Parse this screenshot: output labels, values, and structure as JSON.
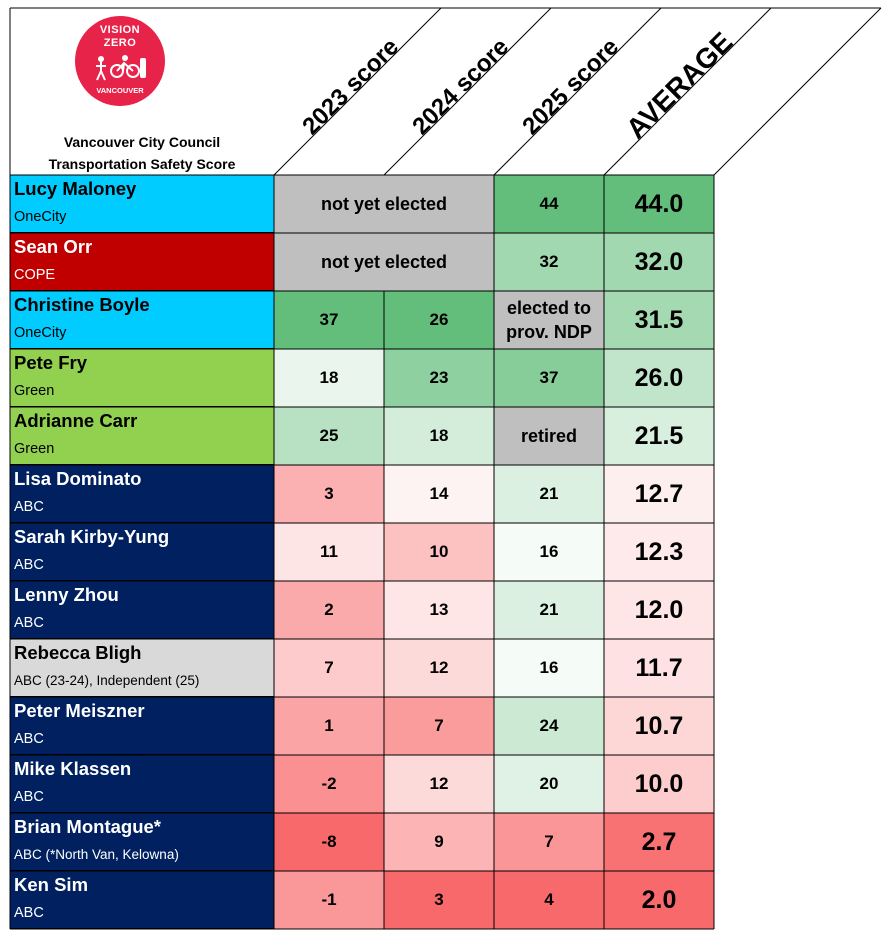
{
  "header": {
    "logo": {
      "line1": "VISION",
      "line2": "ZERO",
      "line3": "VANCOUVER"
    },
    "title_line1": "Vancouver City Council",
    "title_line2": "Transportation Safety Score"
  },
  "colors": {
    "onecity": "#00ccff",
    "cope": "#c00000",
    "green": "#92d050",
    "abc": "#002060",
    "independent": "#d9d9d9",
    "not_applicable": "#bfbfbf",
    "scale_low": "#f8696b",
    "scale_mid": "#ffffff",
    "scale_high": "#63be7b"
  },
  "chart_data": {
    "type": "table",
    "columns": [
      "2023 score",
      "2024 score",
      "2025 score",
      "AVERAGE"
    ],
    "rows": [
      {
        "name": "Lucy Maloney",
        "party": "OneCity",
        "party_key": "onecity",
        "span_note": "not yet elected",
        "s2023": null,
        "s2024": null,
        "s2025": 44,
        "avg": "44.0"
      },
      {
        "name": "Sean Orr",
        "party": "COPE",
        "party_key": "cope",
        "span_note": "not yet elected",
        "s2023": null,
        "s2024": null,
        "s2025": 32,
        "avg": "32.0"
      },
      {
        "name": "Christine Boyle",
        "party": "OneCity",
        "party_key": "onecity",
        "s2023": 37,
        "s2024": 26,
        "s2025": null,
        "s2025_note": "elected to prov. NDP",
        "avg": "31.5"
      },
      {
        "name": "Pete Fry",
        "party": "Green",
        "party_key": "green",
        "s2023": 18,
        "s2024": 23,
        "s2025": 37,
        "avg": "26.0"
      },
      {
        "name": "Adrianne Carr",
        "party": "Green",
        "party_key": "green",
        "s2023": 25,
        "s2024": 18,
        "s2025": null,
        "s2025_note": "retired",
        "avg": "21.5"
      },
      {
        "name": "Lisa Dominato",
        "party": "ABC",
        "party_key": "abc",
        "s2023": 3,
        "s2024": 14,
        "s2025": 21,
        "avg": "12.7"
      },
      {
        "name": "Sarah Kirby-Yung",
        "party": "ABC",
        "party_key": "abc",
        "s2023": 11,
        "s2024": 10,
        "s2025": 16,
        "avg": "12.3"
      },
      {
        "name": "Lenny Zhou",
        "party": "ABC",
        "party_key": "abc",
        "s2023": 2,
        "s2024": 13,
        "s2025": 21,
        "avg": "12.0"
      },
      {
        "name": "Rebecca Bligh",
        "party": "ABC (23-24), Independent (25)",
        "party_key": "independent",
        "s2023": 7,
        "s2024": 12,
        "s2025": 16,
        "avg": "11.7"
      },
      {
        "name": "Peter Meiszner",
        "party": "ABC",
        "party_key": "abc",
        "s2023": 1,
        "s2024": 7,
        "s2025": 24,
        "avg": "10.7"
      },
      {
        "name": "Mike Klassen",
        "party": "ABC",
        "party_key": "abc",
        "s2023": -2,
        "s2024": 12,
        "s2025": 20,
        "avg": "10.0"
      },
      {
        "name": "Brian Montague*",
        "party": "ABC (*North Van, Kelowna)",
        "party_key": "abc",
        "s2023": -8,
        "s2024": 9,
        "s2025": 7,
        "avg": "2.7"
      },
      {
        "name": "Ken Sim",
        "party": "ABC",
        "party_key": "abc",
        "s2023": -1,
        "s2024": 3,
        "s2025": 4,
        "avg": "2.0"
      }
    ]
  }
}
